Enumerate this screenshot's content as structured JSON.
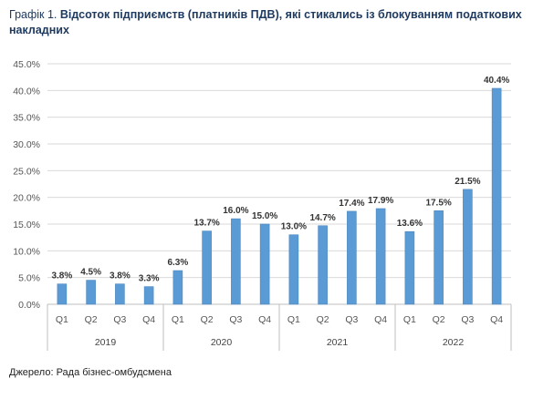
{
  "title_prefix": "Графік 1.",
  "title_main": "Відсоток підприємств (платників ПДВ), які стикались із блокуванням податкових накладних",
  "source": "Джерело: Рада бізнес-омбудсмена",
  "chart_data": {
    "type": "bar",
    "categories": [
      "Q1",
      "Q2",
      "Q3",
      "Q4",
      "Q1",
      "Q2",
      "Q3",
      "Q4",
      "Q1",
      "Q2",
      "Q3",
      "Q4",
      "Q1",
      "Q2",
      "Q3",
      "Q4"
    ],
    "groups": [
      "2019",
      "2020",
      "2021",
      "2022"
    ],
    "values": [
      3.8,
      4.5,
      3.8,
      3.3,
      6.3,
      13.7,
      16.0,
      15.0,
      13.0,
      14.7,
      17.4,
      17.9,
      13.6,
      17.5,
      21.5,
      40.4
    ],
    "data_labels": [
      "3.8%",
      "4.5%",
      "3.8%",
      "3.3%",
      "6.3%",
      "13.7%",
      "16.0%",
      "15.0%",
      "13.0%",
      "14.7%",
      "17.4%",
      "17.9%",
      "13.6%",
      "17.5%",
      "21.5%",
      "40.4%"
    ],
    "yticks": [
      "0.0%",
      "5.0%",
      "10.0%",
      "15.0%",
      "20.0%",
      "25.0%",
      "30.0%",
      "35.0%",
      "40.0%",
      "45.0%"
    ],
    "ylim": [
      0,
      45
    ],
    "grid": true,
    "bar_color": "#5b9bd5"
  }
}
